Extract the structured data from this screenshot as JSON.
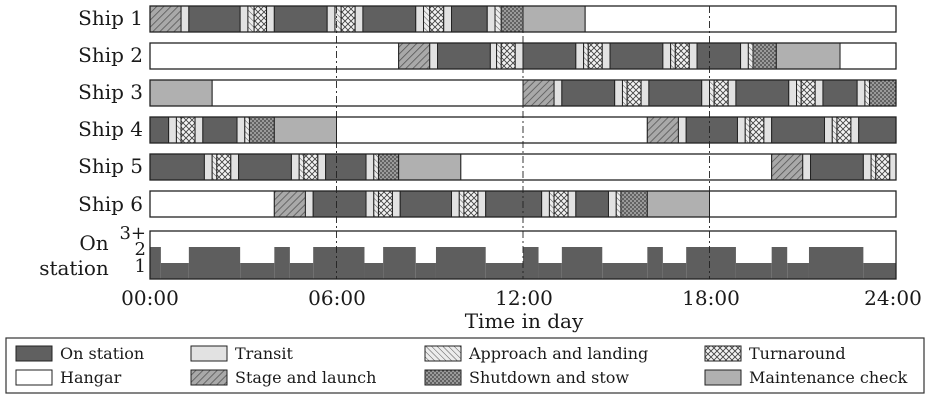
{
  "chart_data": {
    "type": "gantt",
    "xlabel": "Time in day",
    "xlim": [
      0,
      24
    ],
    "x_ticks": [
      {
        "value": 0,
        "label": "00:00"
      },
      {
        "value": 6,
        "label": "06:00"
      },
      {
        "value": 12,
        "label": "12:00"
      },
      {
        "value": 18,
        "label": "18:00"
      },
      {
        "value": 24,
        "label": "24:00"
      }
    ],
    "grid": "vertical dash-dot lines at 06:00, 12:00, 18:00",
    "legend_position": "bottom",
    "categories": {
      "on_station": {
        "label": "On station",
        "color": "#606060",
        "pattern": "solid"
      },
      "hangar": {
        "label": "Hangar",
        "color": "#ffffff",
        "pattern": "solid"
      },
      "transit": {
        "label": "Transit",
        "color": "#e2e2e2",
        "pattern": "solid"
      },
      "stage_launch": {
        "label": "Stage and launch",
        "color": "#a9a9a9",
        "pattern": "diagonal-hatch"
      },
      "approach_landing": {
        "label": "Approach and landing",
        "color": "#e6e6e6",
        "pattern": "backslash-hatch"
      },
      "shutdown_stow": {
        "label": "Shutdown and stow",
        "color": "#9a9a9a",
        "pattern": "dots"
      },
      "turnaround": {
        "label": "Turnaround",
        "color": "#f0f0f0",
        "pattern": "crosshatch"
      },
      "maintenance": {
        "label": "Maintenance check",
        "color": "#b0b0b0",
        "pattern": "solid"
      }
    },
    "legend_order": [
      "on_station",
      "transit",
      "approach_landing",
      "turnaround",
      "hangar",
      "stage_launch",
      "shutdown_stow",
      "maintenance"
    ],
    "series": [
      {
        "name": "Ship 1",
        "tasks": [
          [
            "stage_launch",
            0.0,
            1.0
          ],
          [
            "transit",
            1.0,
            1.25
          ],
          [
            "on_station",
            1.25,
            2.9
          ],
          [
            "transit",
            2.9,
            3.15
          ],
          [
            "approach_landing",
            3.15,
            3.35
          ],
          [
            "turnaround",
            3.35,
            3.75
          ],
          [
            "transit",
            3.75,
            4.0
          ],
          [
            "on_station",
            4.0,
            5.7
          ],
          [
            "transit",
            5.7,
            5.95
          ],
          [
            "approach_landing",
            5.95,
            6.15
          ],
          [
            "turnaround",
            6.15,
            6.6
          ],
          [
            "transit",
            6.6,
            6.85
          ],
          [
            "on_station",
            6.85,
            8.55
          ],
          [
            "transit",
            8.55,
            8.8
          ],
          [
            "approach_landing",
            8.8,
            9.0
          ],
          [
            "turnaround",
            9.0,
            9.45
          ],
          [
            "transit",
            9.45,
            9.7
          ],
          [
            "on_station",
            9.7,
            10.85
          ],
          [
            "transit",
            10.85,
            11.1
          ],
          [
            "approach_landing",
            11.1,
            11.3
          ],
          [
            "shutdown_stow",
            11.3,
            12.0
          ],
          [
            "maintenance",
            12.0,
            14.0
          ],
          [
            "hangar",
            14.0,
            24.0
          ]
        ]
      },
      {
        "name": "Ship 2",
        "tasks": [
          [
            "hangar",
            0.0,
            8.0
          ],
          [
            "stage_launch",
            8.0,
            9.0
          ],
          [
            "transit",
            9.0,
            9.25
          ],
          [
            "on_station",
            9.25,
            10.95
          ],
          [
            "transit",
            10.95,
            11.15
          ],
          [
            "approach_landing",
            11.15,
            11.3
          ],
          [
            "turnaround",
            11.3,
            11.75
          ],
          [
            "transit",
            11.75,
            12.0
          ],
          [
            "on_station",
            12.0,
            13.7
          ],
          [
            "transit",
            13.7,
            13.95
          ],
          [
            "approach_landing",
            13.95,
            14.1
          ],
          [
            "turnaround",
            14.1,
            14.55
          ],
          [
            "transit",
            14.55,
            14.8
          ],
          [
            "on_station",
            14.8,
            16.5
          ],
          [
            "transit",
            16.5,
            16.75
          ],
          [
            "approach_landing",
            16.75,
            16.9
          ],
          [
            "turnaround",
            16.9,
            17.35
          ],
          [
            "transit",
            17.35,
            17.6
          ],
          [
            "on_station",
            17.6,
            19.0
          ],
          [
            "transit",
            19.0,
            19.25
          ],
          [
            "approach_landing",
            19.25,
            19.4
          ],
          [
            "shutdown_stow",
            19.4,
            20.15
          ],
          [
            "maintenance",
            20.15,
            22.2
          ],
          [
            "hangar",
            22.2,
            24.0
          ]
        ]
      },
      {
        "name": "Ship 3",
        "tasks": [
          [
            "maintenance",
            0.0,
            2.0
          ],
          [
            "hangar",
            2.0,
            12.0
          ],
          [
            "stage_launch",
            12.0,
            13.0
          ],
          [
            "transit",
            13.0,
            13.25
          ],
          [
            "on_station",
            13.25,
            14.95
          ],
          [
            "transit",
            14.95,
            15.2
          ],
          [
            "approach_landing",
            15.2,
            15.35
          ],
          [
            "turnaround",
            15.35,
            15.8
          ],
          [
            "transit",
            15.8,
            16.05
          ],
          [
            "on_station",
            16.05,
            17.75
          ],
          [
            "transit",
            17.75,
            18.0
          ],
          [
            "approach_landing",
            18.0,
            18.15
          ],
          [
            "turnaround",
            18.15,
            18.6
          ],
          [
            "transit",
            18.6,
            18.85
          ],
          [
            "on_station",
            18.85,
            20.55
          ],
          [
            "transit",
            20.55,
            20.8
          ],
          [
            "approach_landing",
            20.8,
            20.95
          ],
          [
            "turnaround",
            20.95,
            21.4
          ],
          [
            "transit",
            21.4,
            21.65
          ],
          [
            "on_station",
            21.65,
            22.75
          ],
          [
            "transit",
            22.75,
            23.0
          ],
          [
            "approach_landing",
            23.0,
            23.15
          ],
          [
            "shutdown_stow",
            23.15,
            24.0
          ]
        ]
      },
      {
        "name": "Ship 4",
        "tasks": [
          [
            "on_station",
            0.0,
            0.6
          ],
          [
            "transit",
            0.6,
            0.85
          ],
          [
            "approach_landing",
            0.85,
            1.0
          ],
          [
            "turnaround",
            1.0,
            1.45
          ],
          [
            "transit",
            1.45,
            1.7
          ],
          [
            "on_station",
            1.7,
            2.8
          ],
          [
            "transit",
            2.8,
            3.05
          ],
          [
            "approach_landing",
            3.05,
            3.2
          ],
          [
            "shutdown_stow",
            3.2,
            4.0
          ],
          [
            "maintenance",
            4.0,
            6.0
          ],
          [
            "hangar",
            6.0,
            16.0
          ],
          [
            "stage_launch",
            16.0,
            17.0
          ],
          [
            "transit",
            17.0,
            17.25
          ],
          [
            "on_station",
            17.25,
            18.9
          ],
          [
            "transit",
            18.9,
            19.15
          ],
          [
            "approach_landing",
            19.15,
            19.3
          ],
          [
            "turnaround",
            19.3,
            19.75
          ],
          [
            "transit",
            19.75,
            20.0
          ],
          [
            "on_station",
            20.0,
            21.7
          ],
          [
            "transit",
            21.7,
            21.95
          ],
          [
            "approach_landing",
            21.95,
            22.1
          ],
          [
            "turnaround",
            22.1,
            22.55
          ],
          [
            "transit",
            22.55,
            22.8
          ],
          [
            "on_station",
            22.8,
            24.0
          ]
        ]
      },
      {
        "name": "Ship 5",
        "tasks": [
          [
            "on_station",
            0.0,
            1.75
          ],
          [
            "transit",
            1.75,
            2.0
          ],
          [
            "approach_landing",
            2.0,
            2.15
          ],
          [
            "turnaround",
            2.15,
            2.6
          ],
          [
            "transit",
            2.6,
            2.85
          ],
          [
            "on_station",
            2.85,
            4.55
          ],
          [
            "transit",
            4.55,
            4.8
          ],
          [
            "approach_landing",
            4.8,
            4.95
          ],
          [
            "turnaround",
            4.95,
            5.4
          ],
          [
            "transit",
            5.4,
            5.65
          ],
          [
            "on_station",
            5.65,
            6.95
          ],
          [
            "transit",
            6.95,
            7.2
          ],
          [
            "approach_landing",
            7.2,
            7.35
          ],
          [
            "shutdown_stow",
            7.35,
            8.0
          ],
          [
            "maintenance",
            8.0,
            10.0
          ],
          [
            "hangar",
            10.0,
            20.0
          ],
          [
            "stage_launch",
            20.0,
            21.0
          ],
          [
            "transit",
            21.0,
            21.25
          ],
          [
            "on_station",
            21.25,
            22.95
          ],
          [
            "transit",
            22.95,
            23.2
          ],
          [
            "approach_landing",
            23.2,
            23.35
          ],
          [
            "turnaround",
            23.35,
            23.8
          ],
          [
            "transit",
            23.8,
            24.0
          ]
        ]
      },
      {
        "name": "Ship 6",
        "tasks": [
          [
            "hangar",
            0.0,
            4.0
          ],
          [
            "stage_launch",
            4.0,
            5.0
          ],
          [
            "transit",
            5.0,
            5.25
          ],
          [
            "on_station",
            5.25,
            6.95
          ],
          [
            "transit",
            6.95,
            7.2
          ],
          [
            "approach_landing",
            7.2,
            7.35
          ],
          [
            "turnaround",
            7.35,
            7.8
          ],
          [
            "transit",
            7.8,
            8.05
          ],
          [
            "on_station",
            8.05,
            9.7
          ],
          [
            "transit",
            9.7,
            9.95
          ],
          [
            "approach_landing",
            9.95,
            10.1
          ],
          [
            "turnaround",
            10.1,
            10.55
          ],
          [
            "transit",
            10.55,
            10.8
          ],
          [
            "on_station",
            10.8,
            12.6
          ],
          [
            "transit",
            12.6,
            12.85
          ],
          [
            "approach_landing",
            12.85,
            13.0
          ],
          [
            "turnaround",
            13.0,
            13.45
          ],
          [
            "transit",
            13.45,
            13.7
          ],
          [
            "on_station",
            13.7,
            14.75
          ],
          [
            "transit",
            14.75,
            15.0
          ],
          [
            "approach_landing",
            15.0,
            15.15
          ],
          [
            "shutdown_stow",
            15.15,
            16.0
          ],
          [
            "maintenance",
            16.0,
            18.0
          ],
          [
            "hangar",
            18.0,
            24.0
          ]
        ]
      }
    ],
    "on_station_panel": {
      "label_lines": [
        "On",
        "station"
      ],
      "y_ticks": [
        "1",
        "2",
        "3+"
      ],
      "ylim": [
        0,
        3
      ],
      "steps": [
        [
          0.0,
          0.35,
          2
        ],
        [
          0.35,
          1.25,
          1
        ],
        [
          1.25,
          2.9,
          2
        ],
        [
          2.9,
          4.0,
          1
        ],
        [
          4.0,
          4.5,
          2
        ],
        [
          4.5,
          5.25,
          1
        ],
        [
          5.25,
          6.9,
          2
        ],
        [
          6.9,
          7.5,
          1
        ],
        [
          7.5,
          8.55,
          2
        ],
        [
          8.55,
          9.2,
          1
        ],
        [
          9.2,
          10.8,
          2
        ],
        [
          10.8,
          12.0,
          1
        ],
        [
          12.0,
          12.5,
          2
        ],
        [
          12.5,
          13.25,
          1
        ],
        [
          13.25,
          14.55,
          2
        ],
        [
          14.55,
          16.0,
          1
        ],
        [
          16.0,
          16.5,
          2
        ],
        [
          16.5,
          17.25,
          1
        ],
        [
          17.25,
          18.85,
          2
        ],
        [
          18.85,
          20.0,
          1
        ],
        [
          20.0,
          20.5,
          2
        ],
        [
          20.5,
          21.2,
          1
        ],
        [
          21.2,
          22.95,
          2
        ],
        [
          22.95,
          24.0,
          1
        ]
      ]
    }
  }
}
